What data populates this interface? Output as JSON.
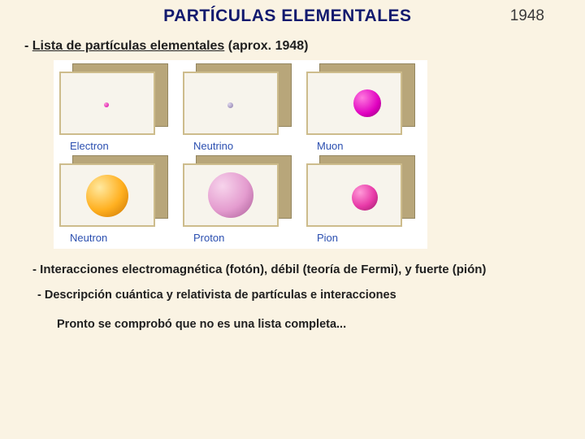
{
  "header": {
    "title": "PARTÍCULAS ELEMENTALES",
    "year": "1948"
  },
  "subtitle": {
    "prefix": "- ",
    "underlined": "Lista de partículas elementales",
    "suffix": " (aprox. 1948)"
  },
  "particles": {
    "rows": [
      [
        {
          "label": "Electron",
          "kind": "electron"
        },
        {
          "label": "Neutrino",
          "kind": "neutrino"
        },
        {
          "label": "Muon",
          "kind": "muon"
        }
      ],
      [
        {
          "label": "Neutron",
          "kind": "neutron"
        },
        {
          "label": "Proton",
          "kind": "proton"
        },
        {
          "label": "Pion",
          "kind": "pion"
        }
      ]
    ],
    "colors": {
      "frame_border": "#cdbc8c",
      "frame_fill": "#f7f4ec",
      "frame_side": "#b8a67a",
      "label_color": "#2b4fb0"
    }
  },
  "body": {
    "line1": "- Interacciones electromagnética (fotón), débil (teoría de Fermi), y fuerte (pión)",
    "line2": "- Descripción cuántica y relativista de partículas e interacciones",
    "line3": "Pronto se comprobó que no es una lista completa..."
  },
  "style": {
    "background": "#faf3e3",
    "title_color": "#121a6e",
    "text_color": "#202020",
    "title_fontsize": 21,
    "subtitle_fontsize": 16,
    "body_fontsize": 15
  }
}
